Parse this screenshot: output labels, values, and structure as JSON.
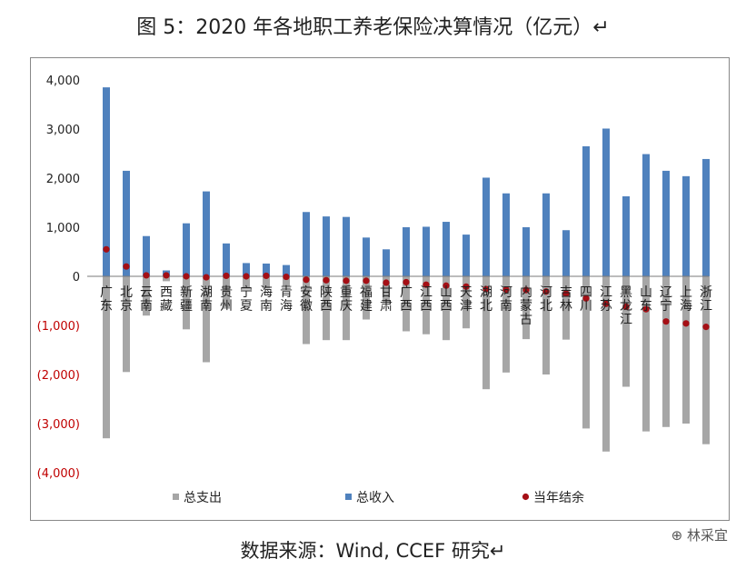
{
  "page": {
    "title": "图 5：2020 年各地职工养老保险决算情况（亿元）↵",
    "source": "数据来源：Wind, CCEF 研究↵",
    "watermark": "林采宜"
  },
  "colors": {
    "expenditure": "#a6a6a6",
    "income": "#4f81bd",
    "balance": "#a50f15",
    "zero_line": "#7a7a7a"
  },
  "chart_data": {
    "type": "bar",
    "title": "图 5：2020 年各地职工养老保险决算情况（亿元）",
    "xlabel": "",
    "ylabel": "",
    "ylim": [
      -4000,
      4000
    ],
    "yticks": [
      4000,
      3000,
      2000,
      1000,
      0,
      -1000,
      -2000,
      -3000,
      -4000
    ],
    "ytick_labels": [
      "4,000",
      "3,000",
      "2,000",
      "1,000",
      "0",
      "(1,000)",
      "(2,000)",
      "(3,000)",
      "(4,000)"
    ],
    "grid": false,
    "legend_position": "bottom",
    "categories": [
      "广东",
      "北京",
      "云南",
      "西藏",
      "新疆",
      "湖南",
      "贵州",
      "宁夏",
      "海南",
      "青海",
      "安徽",
      "陕西",
      "重庆",
      "福建",
      "甘肃",
      "广西",
      "江西",
      "山西",
      "天津",
      "湖北",
      "河南",
      "内蒙古",
      "河北",
      "吉林",
      "四川",
      "江苏",
      "黑龙江",
      "山东",
      "辽宁",
      "上海",
      "浙江"
    ],
    "series": [
      {
        "name": "总支出",
        "kind": "bar",
        "values": [
          -3300,
          -1950,
          -800,
          -100,
          -1080,
          -1750,
          -660,
          -270,
          -250,
          -200,
          -1380,
          -1300,
          -1300,
          -880,
          -540,
          -1120,
          -1180,
          -1300,
          -1060,
          -2300,
          -1960,
          -1280,
          -2000,
          -1290,
          -3100,
          -3570,
          -2250,
          -3160,
          -3070,
          -3000,
          -3420
        ]
      },
      {
        "name": "总收入",
        "kind": "bar",
        "values": [
          3850,
          2150,
          820,
          120,
          1080,
          1730,
          670,
          270,
          260,
          230,
          1310,
          1220,
          1210,
          790,
          550,
          1000,
          1010,
          1110,
          850,
          2010,
          1690,
          1000,
          1690,
          940,
          2650,
          3010,
          1630,
          2490,
          2150,
          2040,
          2390
        ]
      },
      {
        "name": "当年结余",
        "kind": "marker",
        "values": [
          550,
          200,
          20,
          20,
          0,
          -20,
          10,
          0,
          10,
          -10,
          -70,
          -80,
          -90,
          -90,
          -130,
          -120,
          -170,
          -190,
          -210,
          -260,
          -270,
          -280,
          -310,
          -350,
          -450,
          -560,
          -620,
          -670,
          -920,
          -960,
          -1030
        ]
      }
    ]
  }
}
